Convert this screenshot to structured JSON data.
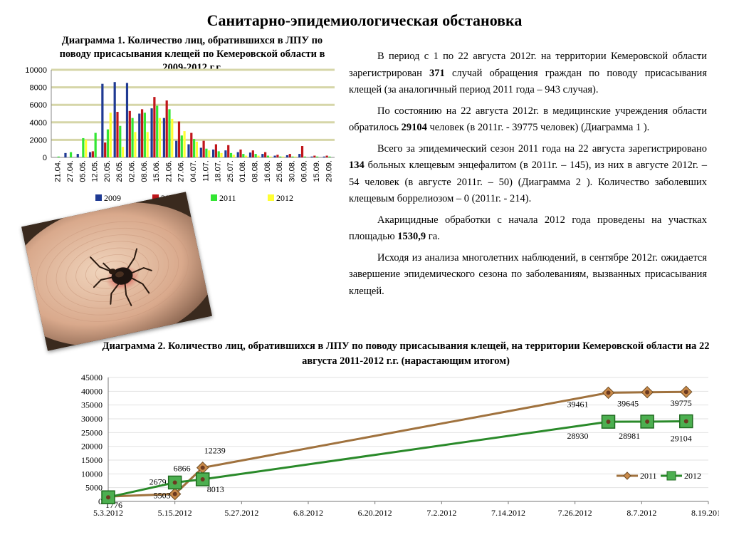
{
  "page": {
    "title": "Санитарно-эпидемиологическая обстановка"
  },
  "text": {
    "paragraphs": [
      [
        {
          "t": "В период с 1 по 22 августа 2012г. на территории Кемеровской области зарегистрирован "
        },
        {
          "t": "371",
          "b": true
        },
        {
          "t": " случай обращения граждан по поводу присасывания клещей (за аналогичный период 2011 года – 943 случая)."
        }
      ],
      [
        {
          "t": "По состоянию на 22 августа 2012г. в медицинские учреждения области обратилось  "
        },
        {
          "t": "29104",
          "b": true
        },
        {
          "t": " человек (в 2011г. - 39775  человек) (Диаграмма 1 )."
        }
      ],
      [
        {
          "t": "Всего за эпидемический сезон 2011 года на 22 августа зарегистрировано "
        },
        {
          "t": "134",
          "b": true
        },
        {
          "t": " больных клещевым энцефалитом (в 2011г. – 145), из них в августе 2012г. – 54 человек (в августе 2011г. – 50) (Диаграмма 2 ). Количество заболевших клещевым боррелиозом – 0 (2011г. - 214)."
        }
      ],
      [
        {
          "t": "Акарицидные обработки с начала 2012 года проведены на участках площадью "
        },
        {
          "t": "1530,9",
          "b": true
        },
        {
          "t": " га."
        }
      ],
      [
        {
          "t": "Исходя из анализа многолетних наблюдений, в сентябре 2012г. ожидается завершение эпидемического сезона по заболеваниям, вызванных присасывания клещей."
        }
      ]
    ]
  },
  "chart_data": [
    {
      "type": "bar",
      "title": "Диаграмма 1. Количество лиц, обратившихся в ЛПУ по поводу присасывания клещей по Кемеровской области в 2009-2012 г.г.",
      "categories": [
        "21.04.",
        "27.04.",
        "05.05.",
        "12.05.",
        "20.05.",
        "26.05.",
        "02.06.",
        "08.06.",
        "15.06.",
        "21.06.",
        "27.06.",
        "04.07.",
        "11.07.",
        "18.07.",
        "25.07.",
        "01.08.",
        "08.08.",
        "16.08.",
        "25.08.",
        "30.08.",
        "06.09.",
        "15.09.",
        "29.09."
      ],
      "series": [
        {
          "name": "2009",
          "color": "#1f3a93",
          "values": [
            0,
            500,
            400,
            600,
            8400,
            8600,
            8500,
            5000,
            5600,
            4500,
            1900,
            1500,
            1100,
            900,
            800,
            600,
            550,
            400,
            200,
            250,
            400,
            100,
            100
          ]
        },
        {
          "name": "2010",
          "color": "#c0161a",
          "values": [
            0,
            0,
            0,
            700,
            1700,
            5200,
            5300,
            5500,
            6900,
            6500,
            4100,
            2800,
            1900,
            1500,
            1400,
            900,
            800,
            600,
            300,
            400,
            1300,
            200,
            200
          ]
        },
        {
          "name": "2011",
          "color": "#33e633",
          "values": [
            100,
            600,
            2200,
            2800,
            3200,
            3600,
            4500,
            5100,
            5900,
            5500,
            2500,
            2100,
            1000,
            700,
            500,
            400,
            400,
            200,
            100,
            100,
            100,
            100,
            100
          ]
        },
        {
          "name": "2012",
          "color": "#ffff33",
          "values": [
            0,
            0,
            2000,
            0,
            5100,
            1200,
            2900,
            2900,
            4500,
            4400,
            3000,
            1800,
            800,
            500,
            300,
            200,
            200,
            100,
            100,
            100,
            0,
            0,
            0
          ]
        }
      ],
      "ylim": [
        0,
        10000
      ],
      "yticks": [
        0,
        2000,
        4000,
        6000,
        8000,
        10000
      ],
      "legend": "bottom",
      "grid": true
    },
    {
      "type": "line",
      "title": "Диаграмма 2. Количество лиц, обратившихся в ЛПУ по поводу присасывания клещей, на территории Кемеровской области на 22 августа 2011-2012 г.г. (нарастающим итогом)",
      "x_labels": [
        "5.3.2012",
        "5.15.2012",
        "5.27.2012",
        "6.8.2012",
        "6.20.2012",
        "7.2.2012",
        "7.14.2012",
        "7.26.2012",
        "8.7.2012",
        "8.19.2012"
      ],
      "xlim": [
        0,
        108
      ],
      "ylim": [
        0,
        45000
      ],
      "yticks": [
        0,
        5000,
        10000,
        15000,
        20000,
        25000,
        30000,
        35000,
        40000,
        45000
      ],
      "legend": "right",
      "grid": true,
      "series": [
        {
          "name": "2011",
          "color": "#a0723e",
          "points": [
            [
              0,
              1776
            ],
            [
              12,
              2679
            ],
            [
              17,
              12239
            ],
            [
              90,
              39461
            ],
            [
              97,
              39645
            ],
            [
              104,
              39775
            ]
          ],
          "labels": [
            "1776",
            "2679",
            "12239",
            "39461",
            "39645",
            "39775"
          ]
        },
        {
          "name": "2012",
          "color": "#2a8a2a",
          "points": [
            [
              0,
              1500
            ],
            [
              12,
              6866
            ],
            [
              17,
              8013
            ],
            [
              90,
              28930
            ],
            [
              97,
              28981
            ],
            [
              104,
              29104
            ]
          ],
          "labels": [
            "",
            "6866",
            "8013",
            "28930",
            "28981",
            "29104"
          ]
        }
      ],
      "extra_labels": [
        "5503"
      ]
    }
  ]
}
